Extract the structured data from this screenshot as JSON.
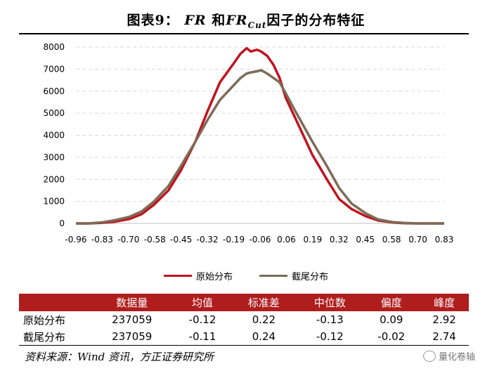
{
  "header": {
    "prefix": "图表9：",
    "fr1": "FR",
    "and": " 和",
    "fr2": "FR",
    "sub": "Cut",
    "suffix": "因子的分布特征"
  },
  "colors": {
    "original": "#c0141f",
    "truncated": "#7d6b56",
    "grid": "#d9d9d9",
    "header_bg": "#b01d1d"
  },
  "chart_data": {
    "type": "line",
    "title": "FR 和FRCut因子的分布特征",
    "xlabel": "",
    "ylabel": "",
    "xlim": [
      -0.96,
      0.83
    ],
    "ylim": [
      0,
      8000
    ],
    "yticks": [
      0,
      1000,
      2000,
      3000,
      4000,
      5000,
      6000,
      7000,
      8000
    ],
    "xticks": [
      "-0.96",
      "-0.83",
      "-0.70",
      "-0.58",
      "-0.45",
      "-0.32",
      "-0.19",
      "-0.06",
      "0.06",
      "0.19",
      "0.32",
      "0.45",
      "0.58",
      "0.70",
      "0.83"
    ],
    "grid": true,
    "legend_position": "bottom",
    "series": [
      {
        "name": "原始分布",
        "x": [
          -0.96,
          -0.9,
          -0.83,
          -0.77,
          -0.7,
          -0.64,
          -0.58,
          -0.51,
          -0.45,
          -0.38,
          -0.32,
          -0.26,
          -0.19,
          -0.16,
          -0.13,
          -0.11,
          -0.08,
          -0.06,
          -0.03,
          0.0,
          0.03,
          0.06,
          0.1,
          0.13,
          0.19,
          0.26,
          0.32,
          0.38,
          0.45,
          0.51,
          0.58,
          0.64,
          0.7,
          0.77,
          0.83
        ],
        "values": [
          0,
          0,
          30,
          80,
          200,
          420,
          850,
          1500,
          2400,
          3700,
          5100,
          6400,
          7300,
          7700,
          7950,
          7800,
          7880,
          7800,
          7600,
          7200,
          6600,
          5700,
          4900,
          4300,
          3100,
          2000,
          1100,
          650,
          320,
          130,
          40,
          10,
          0,
          0,
          0
        ]
      },
      {
        "name": "截尾分布",
        "x": [
          -0.96,
          -0.9,
          -0.83,
          -0.77,
          -0.7,
          -0.64,
          -0.58,
          -0.51,
          -0.45,
          -0.38,
          -0.32,
          -0.26,
          -0.19,
          -0.16,
          -0.13,
          -0.11,
          -0.08,
          -0.06,
          -0.03,
          0.0,
          0.03,
          0.06,
          0.1,
          0.13,
          0.19,
          0.26,
          0.32,
          0.38,
          0.45,
          0.51,
          0.58,
          0.64,
          0.7,
          0.77,
          0.83
        ],
        "values": [
          0,
          0,
          50,
          150,
          300,
          550,
          1000,
          1700,
          2600,
          3700,
          4700,
          5600,
          6300,
          6600,
          6800,
          6850,
          6900,
          6950,
          6800,
          6600,
          6400,
          5900,
          5200,
          4700,
          3700,
          2600,
          1600,
          900,
          450,
          180,
          60,
          20,
          0,
          0,
          0
        ]
      }
    ]
  },
  "legend": {
    "original": "原始分布",
    "truncated": "截尾分布"
  },
  "table": {
    "headers": [
      "",
      "数据量",
      "均值",
      "标准差",
      "中位数",
      "偏度",
      "峰度"
    ],
    "rows": [
      [
        "原始分布",
        "237059",
        "-0.12",
        "0.22",
        "-0.13",
        "0.09",
        "2.92"
      ],
      [
        "截尾分布",
        "237059",
        "-0.11",
        "0.24",
        "-0.12",
        "-0.02",
        "2.74"
      ]
    ]
  },
  "source": "资料来源：Wind 资讯，方正证券研究所",
  "watermark": "量化卷轴"
}
